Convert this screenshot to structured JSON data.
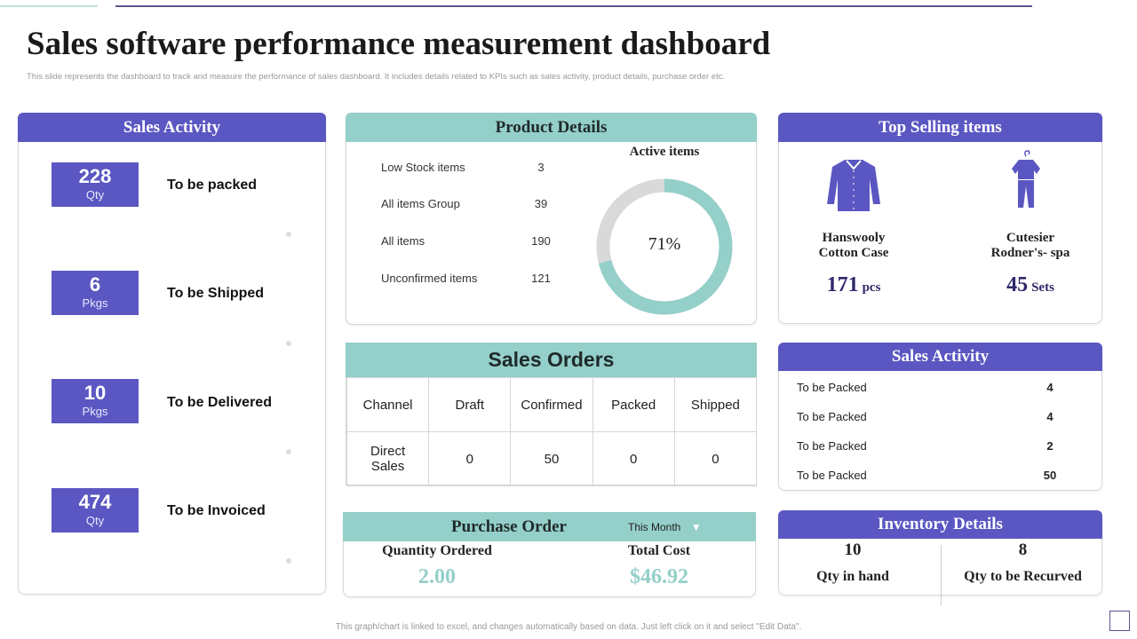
{
  "title": "Sales software performance measurement dashboard",
  "subtitle": "This slide represents the dashboard to track and measure the performance of sales dashboard. It includes details related to KPIs such as sales activity, product details, purchase order etc.",
  "colors": {
    "purple": "#5B57C2",
    "teal": "#94CFC9",
    "navy": "#2E2A6B"
  },
  "sales_activity_left": {
    "title": "Sales Activity",
    "items": [
      {
        "value": "228",
        "unit": "Qty",
        "label": "To be packed"
      },
      {
        "value": "6",
        "unit": "Pkgs",
        "label": "To be Shipped"
      },
      {
        "value": "10",
        "unit": "Pkgs",
        "label": "To be Delivered"
      },
      {
        "value": "474",
        "unit": "Qty",
        "label": "To be Invoiced"
      }
    ]
  },
  "product_details": {
    "title": "Product Details",
    "rows": [
      {
        "label": "Low Stock items",
        "value": "3"
      },
      {
        "label": "All items Group",
        "value": "39"
      },
      {
        "label": "All items",
        "value": "190"
      },
      {
        "label": "Unconfirmed  items",
        "value": "121"
      }
    ],
    "active_items": {
      "label": "Active items",
      "percent": 71,
      "percent_label": "71%"
    }
  },
  "sales_orders": {
    "title": "Sales Orders",
    "headers": [
      "Channel",
      "Draft",
      "Confirmed",
      "Packed",
      "Shipped"
    ],
    "row": [
      "Direct Sales",
      "0",
      "50",
      "0",
      "0"
    ]
  },
  "purchase_order": {
    "title": "Purchase Order",
    "period": "This Month",
    "qty_label": "Quantity Ordered",
    "qty_value": "2.00",
    "cost_label": "Total Cost",
    "cost_value": "$46.92"
  },
  "top_selling": {
    "title": "Top Selling items",
    "items": [
      {
        "icon": "shirt-icon",
        "name_line1": "Hanswooly",
        "name_line2": "Cotton Case",
        "value": "171",
        "unit": "pcs"
      },
      {
        "icon": "pajama-icon",
        "name_line1": "Cutesier",
        "name_line2": "Rodner's- spa",
        "value": "45",
        "unit": "Sets"
      }
    ]
  },
  "sales_activity_right": {
    "title": "Sales Activity",
    "rows": [
      {
        "label": "To be Packed",
        "value": "4"
      },
      {
        "label": "To be Packed",
        "value": "4"
      },
      {
        "label": "To be Packed",
        "value": "2"
      },
      {
        "label": "To be Packed",
        "value": "50"
      }
    ]
  },
  "inventory": {
    "title": "Inventory Details",
    "in_hand_value": "10",
    "in_hand_label": "Qty in hand",
    "recurved_value": "8",
    "recurved_label": "Qty to be Recurved"
  },
  "footer": "This graph/chart is linked to excel, and changes automatically based on data. Just left click on it and select \"Edit Data\"."
}
